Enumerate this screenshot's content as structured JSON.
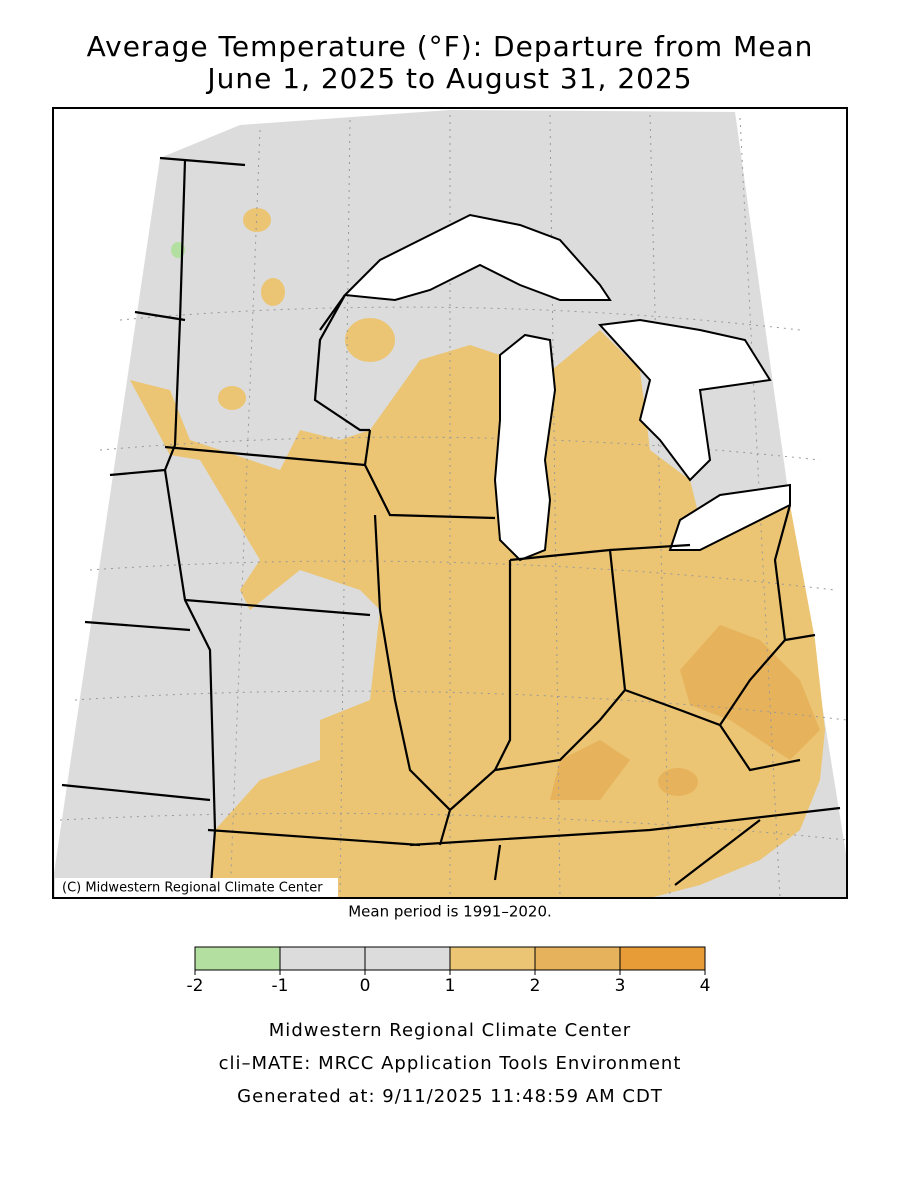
{
  "title": "Average Temperature (°F): Departure from Mean",
  "subtitle": "June 1, 2025 to August 31, 2025",
  "copyright": "(C) Midwestern Regional Climate Center",
  "note": "Mean period is 1991–2020.",
  "legend": {
    "bins": [
      -2,
      -1,
      0,
      1,
      2,
      3,
      4
    ],
    "colors": [
      "#b3e0a0",
      "#dcdcdc",
      "#dcdcdc",
      "#ebc573",
      "#e6b25c",
      "#e89c38"
    ]
  },
  "footer": [
    "Midwestern Regional Climate Center",
    "cli–MATE: MRCC Application Tools Environment",
    "Generated at: 9/11/2025 11:48:59 AM CDT"
  ]
}
